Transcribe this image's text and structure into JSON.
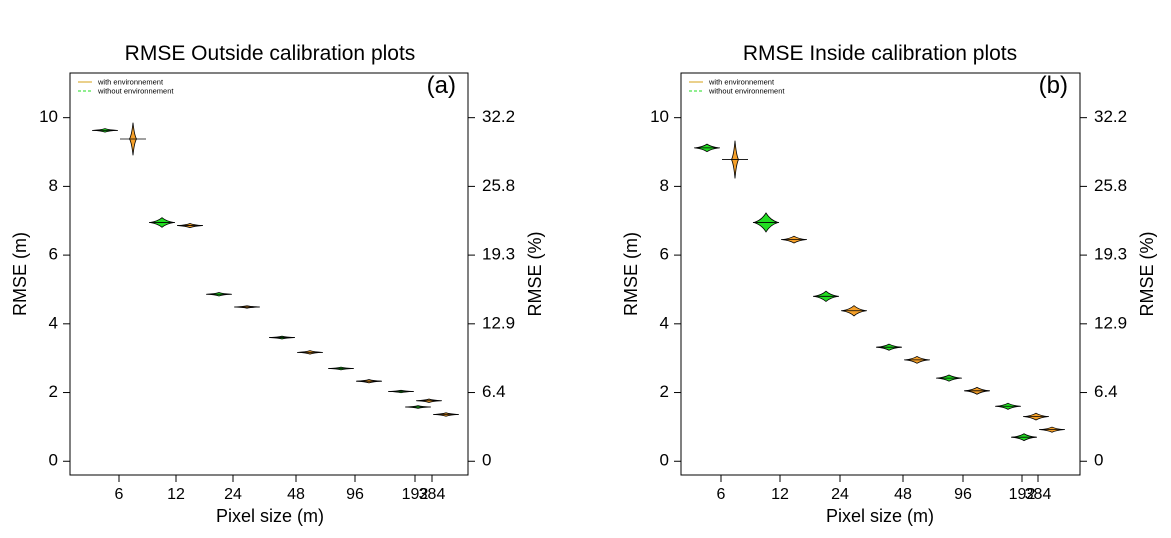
{
  "legend": {
    "with_label": "with environnement",
    "without_label": "without environnement"
  },
  "colors": {
    "without": "#22dd22",
    "with": "#f5a02a",
    "with_line": "#d4a017",
    "without_line": "#22dd22",
    "outline": "#000000"
  },
  "chart_data": [
    {
      "type": "violin",
      "title": "RMSE Outside calibration plots",
      "panel_label": "(a)",
      "xlabel": "Pixel size (m)",
      "ylabel": "RMSE (m)",
      "ylabel_right": "RMSE (%)",
      "categories": [
        "6",
        "12",
        "24",
        "48",
        "96",
        "192",
        "384"
      ],
      "ylim": [
        -0.4,
        11.3
      ],
      "yticks": [
        "0",
        "2",
        "4",
        "6",
        "8",
        "10"
      ],
      "yticks_right": [
        "0",
        "6.4",
        "12.9",
        "19.3",
        "25.8",
        "32.2"
      ],
      "legend_position": "top-left",
      "series": [
        {
          "name": "without environnement",
          "values": [
            9.63,
            6.95,
            4.86,
            3.6,
            2.7,
            2.03,
            1.58
          ],
          "spread": [
            0.1,
            0.28,
            0.1,
            0.08,
            0.08,
            0.07,
            0.08
          ]
        },
        {
          "name": "with environnement",
          "values": [
            9.38,
            6.86,
            4.49,
            3.17,
            2.33,
            1.76,
            1.36
          ],
          "spread": [
            0.95,
            0.12,
            0.07,
            0.1,
            0.1,
            0.1,
            0.1
          ]
        }
      ]
    },
    {
      "type": "violin",
      "title": "RMSE Inside calibration plots",
      "panel_label": "(b)",
      "xlabel": "Pixel size (m)",
      "ylabel": "RMSE (m)",
      "ylabel_right": "RMSE (%)",
      "categories": [
        "6",
        "12",
        "24",
        "48",
        "96",
        "192",
        "384"
      ],
      "ylim": [
        -0.4,
        11.3
      ],
      "yticks": [
        "0",
        "2",
        "4",
        "6",
        "8",
        "10"
      ],
      "yticks_right": [
        "0",
        "6.4",
        "12.9",
        "19.3",
        "25.8",
        "32.2"
      ],
      "legend_position": "top-left",
      "series": [
        {
          "name": "without environnement",
          "values": [
            9.12,
            6.95,
            4.8,
            3.32,
            2.42,
            1.6,
            0.7
          ],
          "spread": [
            0.22,
            0.55,
            0.3,
            0.18,
            0.18,
            0.18,
            0.2
          ]
        },
        {
          "name": "with environnement",
          "values": [
            8.78,
            6.45,
            4.38,
            2.95,
            2.05,
            1.3,
            0.92
          ],
          "spread": [
            1.1,
            0.2,
            0.3,
            0.2,
            0.2,
            0.2,
            0.15
          ]
        }
      ]
    }
  ]
}
